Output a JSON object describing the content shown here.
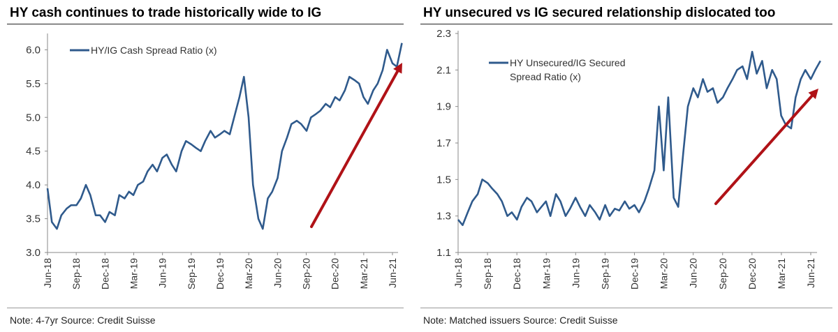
{
  "colors": {
    "series": "#2F5A8C",
    "arrow": "#B01217",
    "axis": "#888888"
  },
  "charts": [
    {
      "title": "HY cash continues to trade historically wide to IG",
      "note": "Note: 4-7yr Source: Credit Suisse"
    },
    {
      "title": "HY unsecured vs IG secured relationship dislocated too",
      "note": "Note: Matched issuers Source: Credit Suisse"
    }
  ],
  "chart_data": [
    {
      "type": "line",
      "title": "HY cash continues to trade historically wide to IG",
      "xlabel": "",
      "ylabel": "",
      "ylim": [
        3.0,
        6.2
      ],
      "yticks": [
        "3.0",
        "3.5",
        "4.0",
        "4.5",
        "5.0",
        "5.5",
        "6.0"
      ],
      "xticks": [
        "Jun-18",
        "Sep-18",
        "Dec-18",
        "Mar-19",
        "Jun-19",
        "Sep-19",
        "Dec-19",
        "Mar-20",
        "Jun-20",
        "Sep-20",
        "Dec-20",
        "Mar-21",
        "Jun-21"
      ],
      "legend": "top-left",
      "annotation": "upward red arrow",
      "series": [
        {
          "name": "HY/IG Cash Spread Ratio (x)",
          "x": [
            "2018-06-01",
            "2018-06-15",
            "2018-07-01",
            "2018-07-15",
            "2018-08-01",
            "2018-08-15",
            "2018-09-01",
            "2018-09-15",
            "2018-10-01",
            "2018-10-15",
            "2018-11-01",
            "2018-11-15",
            "2018-12-01",
            "2018-12-15",
            "2019-01-01",
            "2019-01-15",
            "2019-02-01",
            "2019-02-15",
            "2019-03-01",
            "2019-03-15",
            "2019-04-01",
            "2019-04-15",
            "2019-05-01",
            "2019-05-15",
            "2019-06-01",
            "2019-06-15",
            "2019-07-01",
            "2019-07-15",
            "2019-08-01",
            "2019-08-15",
            "2019-09-01",
            "2019-09-15",
            "2019-10-01",
            "2019-10-15",
            "2019-11-01",
            "2019-11-15",
            "2019-12-01",
            "2019-12-15",
            "2020-01-01",
            "2020-01-15",
            "2020-02-01",
            "2020-02-15",
            "2020-03-01",
            "2020-03-15",
            "2020-04-01",
            "2020-04-15",
            "2020-05-01",
            "2020-05-15",
            "2020-06-01",
            "2020-06-15",
            "2020-07-01",
            "2020-07-15",
            "2020-08-01",
            "2020-08-15",
            "2020-09-01",
            "2020-09-15",
            "2020-10-01",
            "2020-10-15",
            "2020-11-01",
            "2020-11-15",
            "2020-12-01",
            "2020-12-15",
            "2021-01-01",
            "2021-01-15",
            "2021-02-01",
            "2021-02-15",
            "2021-03-01",
            "2021-03-15",
            "2021-04-01",
            "2021-04-15",
            "2021-05-01",
            "2021-05-15",
            "2021-06-01",
            "2021-06-15",
            "2021-07-01"
          ],
          "values": [
            3.95,
            3.45,
            3.35,
            3.55,
            3.65,
            3.7,
            3.7,
            3.8,
            4.0,
            3.85,
            3.55,
            3.55,
            3.45,
            3.6,
            3.55,
            3.85,
            3.8,
            3.9,
            3.85,
            4.0,
            4.05,
            4.2,
            4.3,
            4.2,
            4.4,
            4.45,
            4.3,
            4.2,
            4.5,
            4.65,
            4.6,
            4.55,
            4.5,
            4.65,
            4.8,
            4.7,
            4.75,
            4.8,
            4.75,
            5.0,
            5.3,
            5.6,
            5.0,
            4.0,
            3.5,
            3.35,
            3.8,
            3.9,
            4.1,
            4.5,
            4.7,
            4.9,
            4.95,
            4.9,
            4.8,
            5.0,
            5.05,
            5.1,
            5.2,
            5.15,
            5.3,
            5.25,
            5.4,
            5.6,
            5.55,
            5.5,
            5.3,
            5.2,
            5.4,
            5.5,
            5.7,
            6.0,
            5.8,
            5.75,
            6.1
          ]
        }
      ]
    },
    {
      "type": "line",
      "title": "HY unsecured vs IG secured relationship dislocated too",
      "xlabel": "",
      "ylabel": "",
      "ylim": [
        1.1,
        2.3
      ],
      "yticks": [
        "1.1",
        "1.3",
        "1.5",
        "1.7",
        "1.9",
        "2.1",
        "2.3"
      ],
      "xticks": [
        "Jun-18",
        "Sep-18",
        "Dec-18",
        "Mar-19",
        "Jun-19",
        "Sep-19",
        "Dec-19",
        "Mar-20",
        "Jun-20",
        "Sep-20",
        "Dec-20",
        "Mar-21",
        "Jun-21"
      ],
      "legend": "top-left",
      "annotation": "upward red arrow",
      "series": [
        {
          "name": "HY Unsecured/IG Secured Spread Ratio (x)",
          "x": [
            "2018-06-01",
            "2018-06-15",
            "2018-07-01",
            "2018-07-15",
            "2018-08-01",
            "2018-08-15",
            "2018-09-01",
            "2018-09-15",
            "2018-10-01",
            "2018-10-15",
            "2018-11-01",
            "2018-11-15",
            "2018-12-01",
            "2018-12-15",
            "2019-01-01",
            "2019-01-15",
            "2019-02-01",
            "2019-02-15",
            "2019-03-01",
            "2019-03-15",
            "2019-04-01",
            "2019-04-15",
            "2019-05-01",
            "2019-05-15",
            "2019-06-01",
            "2019-06-15",
            "2019-07-01",
            "2019-07-15",
            "2019-08-01",
            "2019-08-15",
            "2019-09-01",
            "2019-09-15",
            "2019-10-01",
            "2019-10-15",
            "2019-11-01",
            "2019-11-15",
            "2019-12-01",
            "2019-12-15",
            "2020-01-01",
            "2020-01-15",
            "2020-02-01",
            "2020-02-15",
            "2020-03-01",
            "2020-03-15",
            "2020-04-01",
            "2020-04-15",
            "2020-05-01",
            "2020-05-15",
            "2020-06-01",
            "2020-06-15",
            "2020-07-01",
            "2020-07-15",
            "2020-08-01",
            "2020-08-15",
            "2020-09-01",
            "2020-09-15",
            "2020-10-01",
            "2020-10-15",
            "2020-11-01",
            "2020-11-15",
            "2020-12-01",
            "2020-12-15",
            "2021-01-01",
            "2021-01-15",
            "2021-02-01",
            "2021-02-15",
            "2021-03-01",
            "2021-03-15",
            "2021-04-01",
            "2021-04-15",
            "2021-05-01",
            "2021-05-15",
            "2021-06-01",
            "2021-06-15",
            "2021-07-01"
          ],
          "values": [
            1.28,
            1.25,
            1.32,
            1.38,
            1.42,
            1.5,
            1.48,
            1.45,
            1.42,
            1.38,
            1.3,
            1.32,
            1.28,
            1.35,
            1.4,
            1.38,
            1.32,
            1.35,
            1.38,
            1.3,
            1.42,
            1.38,
            1.3,
            1.34,
            1.4,
            1.35,
            1.3,
            1.36,
            1.32,
            1.28,
            1.36,
            1.3,
            1.34,
            1.33,
            1.38,
            1.34,
            1.36,
            1.32,
            1.38,
            1.45,
            1.55,
            1.9,
            1.55,
            1.95,
            1.4,
            1.35,
            1.65,
            1.9,
            2.0,
            1.95,
            2.05,
            1.98,
            2.0,
            1.92,
            1.95,
            2.0,
            2.05,
            2.1,
            2.12,
            2.05,
            2.2,
            2.08,
            2.15,
            2.0,
            2.1,
            2.05,
            1.85,
            1.8,
            1.78,
            1.95,
            2.05,
            2.1,
            2.05,
            2.1,
            2.15
          ]
        }
      ]
    }
  ]
}
